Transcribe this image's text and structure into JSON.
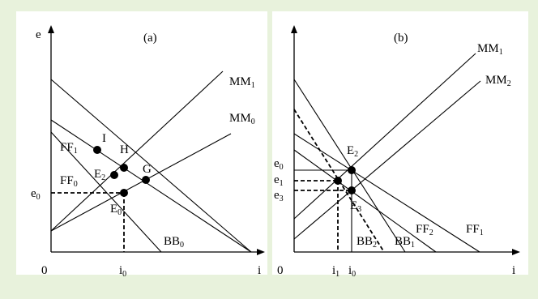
{
  "colors": {
    "background": "#e8f2dc",
    "panel": "#ffffff",
    "ink": "#000000"
  },
  "panel_a": {
    "title": "(a)",
    "y_axis": "e",
    "x_axis": "i",
    "origin": "0",
    "e0": {
      "base": "e",
      "sub": "0"
    },
    "i0": {
      "base": "i",
      "sub": "0"
    },
    "MM1": {
      "base": "MM",
      "sub": "1"
    },
    "MM0": {
      "base": "MM",
      "sub": "0"
    },
    "FF1": {
      "base": "FF",
      "sub": "1"
    },
    "FF0": {
      "base": "FF",
      "sub": "0"
    },
    "BB0": {
      "base": "BB",
      "sub": "0"
    },
    "E2": {
      "base": "E",
      "sub": "2"
    },
    "E0": {
      "base": "E",
      "sub": "0"
    },
    "I": "I",
    "H": "H",
    "G": "G"
  },
  "panel_b": {
    "title": "(b)",
    "x_axis": "i",
    "origin": "0",
    "e0": {
      "base": "e",
      "sub": "0"
    },
    "e1": {
      "base": "e",
      "sub": "1"
    },
    "e3": {
      "base": "e",
      "sub": "3"
    },
    "i1": {
      "base": "i",
      "sub": "1"
    },
    "i0": {
      "base": "i",
      "sub": "0"
    },
    "MM1": {
      "base": "MM",
      "sub": "1"
    },
    "MM2": {
      "base": "MM",
      "sub": "2"
    },
    "E2": {
      "base": "E",
      "sub": "2"
    },
    "E3": {
      "base": "E",
      "sub": "3"
    },
    "FF2": {
      "base": "FF",
      "sub": "2"
    },
    "FF1": {
      "base": "FF",
      "sub": "1"
    },
    "BB2": {
      "base": "BB",
      "sub": "2"
    },
    "BB1": {
      "base": "BB",
      "sub": "1"
    }
  }
}
